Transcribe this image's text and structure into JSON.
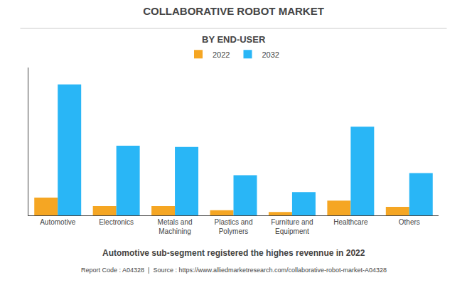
{
  "chart_data": {
    "type": "bar",
    "title": "COLLABORATIVE ROBOT MARKET",
    "subtitle": "BY END-USER",
    "categories": [
      "Automotive",
      "Electronics",
      "Metals and\nMachining",
      "Plastics and\nPolymers",
      "Furniture and\nEquipment",
      "Healthcare",
      "Others"
    ],
    "series": [
      {
        "name": "2022",
        "color": "#F5A623",
        "values": [
          0.42,
          0.22,
          0.22,
          0.12,
          0.08,
          0.35,
          0.2
        ]
      },
      {
        "name": "2032",
        "color": "#29B6F6",
        "values": [
          3.1,
          1.65,
          1.62,
          0.95,
          0.55,
          2.1,
          1.0
        ]
      }
    ],
    "ylim": [
      0,
      3.5
    ],
    "grid": false,
    "legend": "top",
    "tick_labels": "x",
    "footnote": "Automotive sub-segment registered the highes revennue in 2022",
    "source": "Report Code : A04328  |  Source : https://www.alliedmarketresearch.com/collaborative-robot-market-A04328"
  }
}
